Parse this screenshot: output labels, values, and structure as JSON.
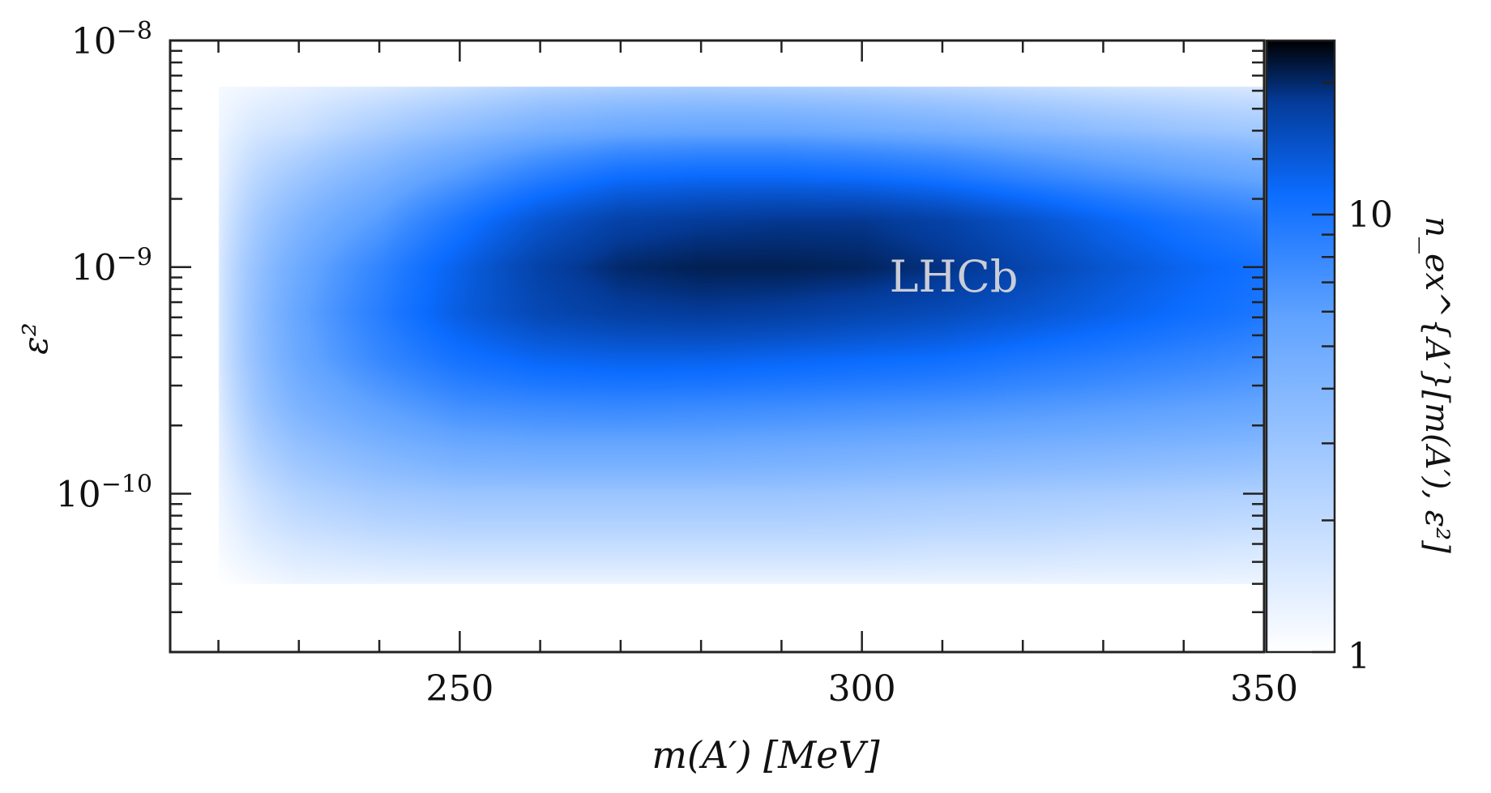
{
  "chart_data": {
    "type": "heatmap",
    "title": "",
    "annotation": "LHCb",
    "xlabel": "m(A′) [MeV]",
    "ylabel": "ε²",
    "zlabel": "n_ex^{A′}[m(A′), ε²]",
    "x_scale": "linear",
    "y_scale": "log",
    "z_scale": "log",
    "xlim": [
      214,
      350
    ],
    "ylim": [
      2e-11,
      1e-08
    ],
    "zlim": [
      1,
      25
    ],
    "x_ticks": [
      250,
      300,
      350
    ],
    "x_tick_labels": [
      "250",
      "300",
      "350"
    ],
    "y_ticks": [
      1e-10,
      1e-09,
      1e-08
    ],
    "y_tick_labels": [
      {
        "base": "10",
        "exp": "−10"
      },
      {
        "base": "10",
        "exp": "−9"
      },
      {
        "base": "10",
        "exp": "−8"
      }
    ],
    "z_ticks": [
      1,
      10
    ],
    "z_tick_labels": [
      "1",
      "10"
    ],
    "colormap": {
      "low": "#ffffff",
      "mid": "#0b6cff",
      "high": "#000000"
    },
    "grid": false,
    "x": [
      220,
      225,
      230,
      240,
      250,
      260,
      270,
      280,
      290,
      300,
      310,
      320,
      330,
      340,
      350
    ],
    "y": [
      4e-11,
      6e-11,
      1e-10,
      1.6e-10,
      2.5e-10,
      4e-10,
      6.3e-10,
      1e-09,
      1.6e-09,
      2.5e-09,
      4e-09,
      6.3e-09
    ],
    "z": [
      [
        1.0,
        1.1,
        1.2,
        1.3,
        1.4,
        1.5,
        1.5,
        1.5,
        1.4,
        1.3,
        1.2,
        1.1
      ],
      [
        1.1,
        1.4,
        1.8,
        2.4,
        3.0,
        3.4,
        3.5,
        3.3,
        2.8,
        2.2,
        1.6,
        1.2
      ],
      [
        1.2,
        1.6,
        2.3,
        3.2,
        4.3,
        5.2,
        5.5,
        5.0,
        4.0,
        2.9,
        1.8,
        1.3
      ],
      [
        1.2,
        1.8,
        2.8,
        4.2,
        6.0,
        8.0,
        9.0,
        8.3,
        6.3,
        4.4,
        2.6,
        1.5
      ],
      [
        1.2,
        1.9,
        3.0,
        5.0,
        7.5,
        10.5,
        13.0,
        12.5,
        10.0,
        6.5,
        3.5,
        1.8
      ],
      [
        1.2,
        1.9,
        3.0,
        5.2,
        8.0,
        12.0,
        16.0,
        17.0,
        14.0,
        9.0,
        4.5,
        2.2
      ],
      [
        1.2,
        1.9,
        3.0,
        5.2,
        8.2,
        12.5,
        17.5,
        20.0,
        17.0,
        11.0,
        5.2,
        2.4
      ],
      [
        1.2,
        1.9,
        3.0,
        5.2,
        8.0,
        12.5,
        18.0,
        21.0,
        18.0,
        11.5,
        5.4,
        2.5
      ],
      [
        1.2,
        1.9,
        3.0,
        5.0,
        7.8,
        12.0,
        17.5,
        21.0,
        18.5,
        11.5,
        5.4,
        2.4
      ],
      [
        1.2,
        1.9,
        2.9,
        4.8,
        7.5,
        11.5,
        16.5,
        20.5,
        18.5,
        11.0,
        5.0,
        2.3
      ],
      [
        1.2,
        1.8,
        2.8,
        4.6,
        7.2,
        11.0,
        15.5,
        19.0,
        17.0,
        10.0,
        4.6,
        2.1
      ],
      [
        1.2,
        1.8,
        2.7,
        4.4,
        6.8,
        10.0,
        14.0,
        16.5,
        14.5,
        8.5,
        4.0,
        1.9
      ],
      [
        1.2,
        1.7,
        2.6,
        4.2,
        6.4,
        9.2,
        12.5,
        14.0,
        12.0,
        7.2,
        3.5,
        1.7
      ],
      [
        1.2,
        1.7,
        2.5,
        4.0,
        6.0,
        8.4,
        11.0,
        12.0,
        10.0,
        6.2,
        3.1,
        1.6
      ],
      [
        1.2,
        1.6,
        2.4,
        3.8,
        5.6,
        7.6,
        9.8,
        10.5,
        8.6,
        5.4,
        2.8,
        1.5
      ]
    ]
  }
}
